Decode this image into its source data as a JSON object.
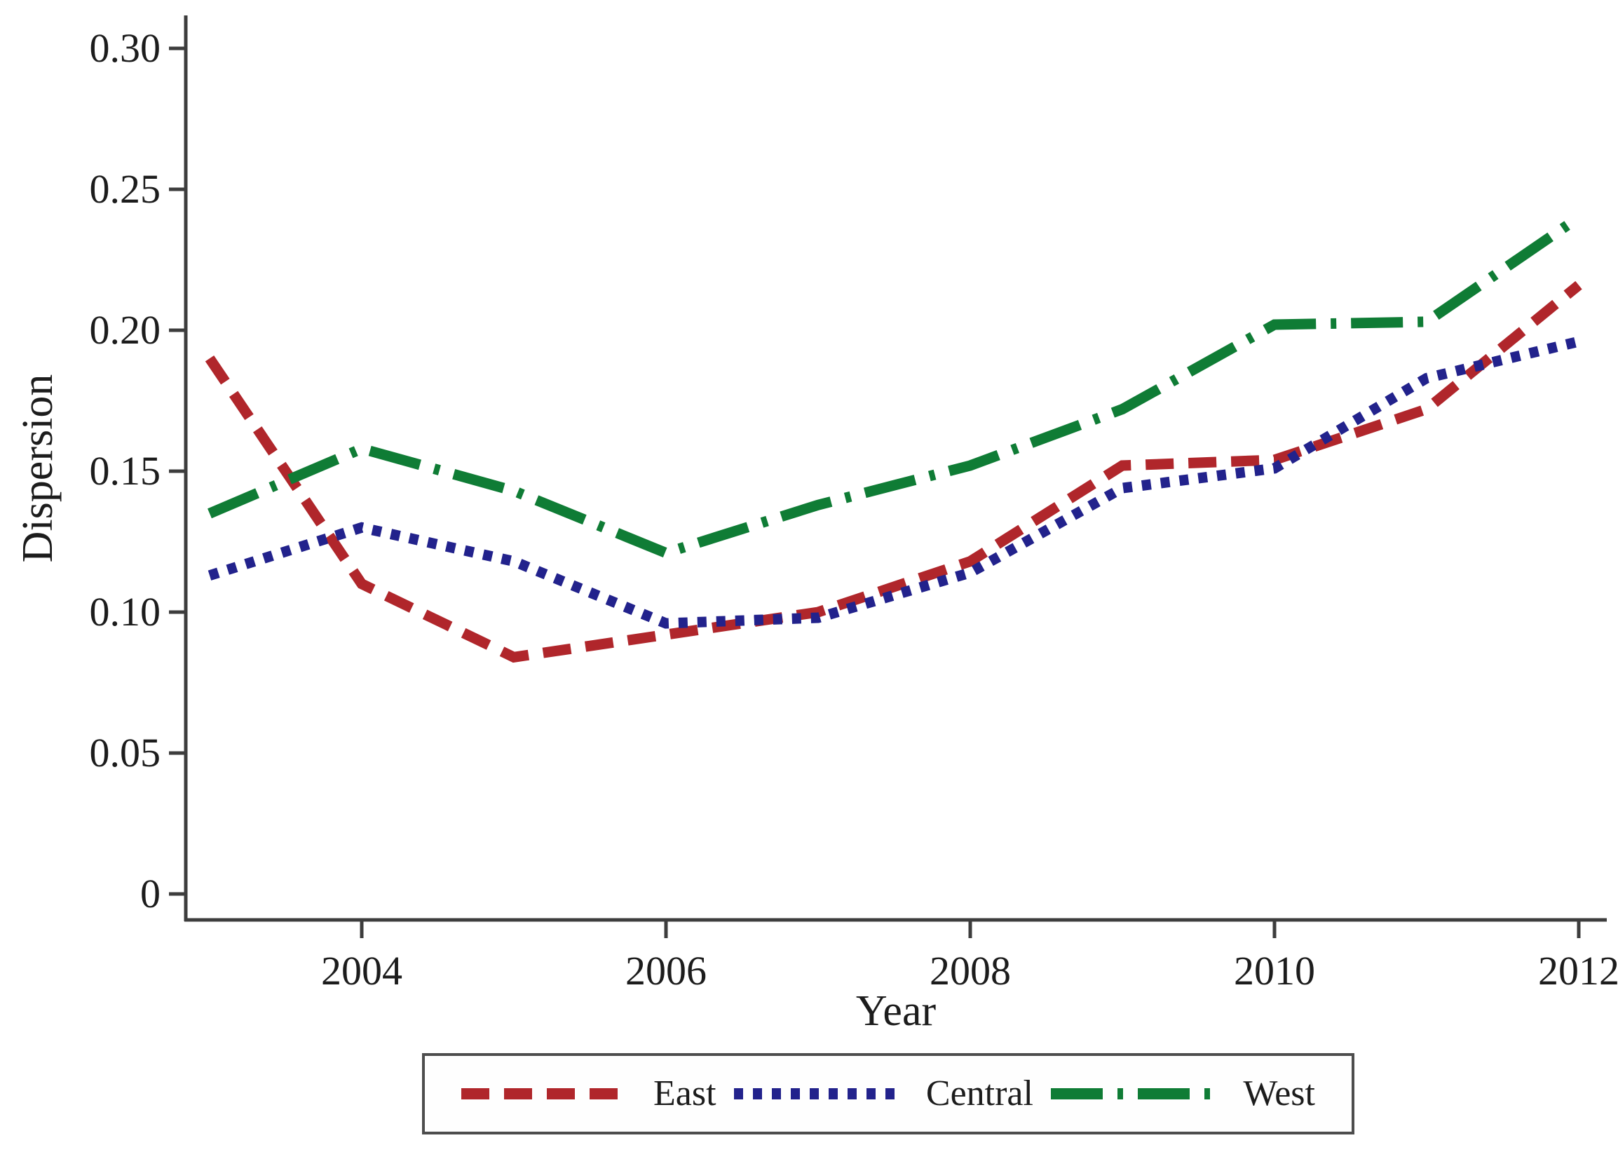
{
  "figure": {
    "ylabel": "Dispersion",
    "xlabel": "Year",
    "background_color": "#ffffff",
    "axis_color": "#3d3d3d",
    "text_color": "#1c1c1c",
    "legend_border_color": "#4d4d4d"
  },
  "chart_data": {
    "type": "line",
    "title": "",
    "xlabel": "Year",
    "ylabel": "Dispersion",
    "x": [
      2003,
      2004,
      2005,
      2006,
      2007,
      2008,
      2009,
      2010,
      2011,
      2012
    ],
    "x_ticks": [
      2004,
      2006,
      2008,
      2010,
      2012
    ],
    "x_tick_labels": [
      "2004",
      "2006",
      "2008",
      "2010",
      "2012"
    ],
    "y_ticks": [
      0,
      0.05,
      0.1,
      0.15,
      0.2,
      0.25,
      0.3
    ],
    "y_tick_labels": [
      "0",
      "0.05",
      "0.10",
      "0.15",
      "0.20",
      "0.25",
      "0.30"
    ],
    "xlim": [
      2002.85,
      2012.2
    ],
    "ylim": [
      0,
      0.3
    ],
    "grid": false,
    "legend_position": "bottom",
    "series": [
      {
        "name": "East",
        "color": "#b0262b",
        "dash": "dashed",
        "values": [
          0.19,
          0.11,
          0.084,
          0.092,
          0.1,
          0.118,
          0.152,
          0.154,
          0.172,
          0.216
        ]
      },
      {
        "name": "Central",
        "color": "#22228c",
        "dash": "dotted",
        "values": [
          0.113,
          0.13,
          0.118,
          0.096,
          0.098,
          0.114,
          0.144,
          0.151,
          0.183,
          0.196
        ]
      },
      {
        "name": "West",
        "color": "#0f7c35",
        "dash": "dashdot",
        "values": [
          0.135,
          0.158,
          0.143,
          0.121,
          0.138,
          0.152,
          0.172,
          0.202,
          0.203,
          0.24
        ]
      }
    ]
  }
}
